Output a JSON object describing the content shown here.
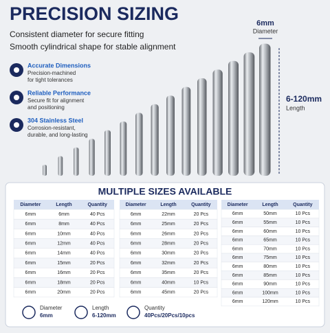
{
  "header": {
    "title": "PRECISION SIZING",
    "subtitle_lines": [
      "Consistent diameter for secure fitting",
      "Smooth cylindrical shape for stable alignment"
    ]
  },
  "features": [
    {
      "title": "Accurate Dimensions",
      "description": [
        "Precision-machined",
        "for tight tolerances"
      ]
    },
    {
      "title": "Reliable Performance",
      "description": [
        "Secure fit for alignment",
        "and positioning"
      ]
    },
    {
      "title": "304 Stainless Steel",
      "description": [
        "Corrosion-resistant,",
        "durable, and long-lasting"
      ]
    }
  ],
  "dimensions": {
    "diameter": {
      "value": "6mm",
      "label": "Diameter"
    },
    "length": {
      "value": "6-120mm",
      "label": "Length"
    }
  },
  "sizes": {
    "title": "MULTIPLE SIZES AVAILABLE",
    "tables": [
      {
        "columns": [
          "Diameter",
          "Length",
          "Quantity"
        ],
        "rows": [
          [
            "6mm",
            "6mm",
            "40 Pcs"
          ],
          [
            "6mm",
            "8mm",
            "40 Pcs"
          ],
          [
            "6mm",
            "10mm",
            "40 Pcs"
          ],
          [
            "6mm",
            "12mm",
            "40 Pcs"
          ],
          [
            "6mm",
            "14mm",
            "40 Pcs"
          ],
          [
            "6mm",
            "15mm",
            "20 Pcs"
          ],
          [
            "6mm",
            "16mm",
            "20 Pcs"
          ],
          [
            "6mm",
            "18mm",
            "20 Pcs"
          ],
          [
            "6mm",
            "20mm",
            "20 Pcs"
          ]
        ]
      },
      {
        "columns": [
          "Diameter",
          "Length",
          "Quantity"
        ],
        "rows": [
          [
            "6mm",
            "22mm",
            "20 Pcs"
          ],
          [
            "6mm",
            "25mm",
            "20 Pcs"
          ],
          [
            "6mm",
            "26mm",
            "20 Pcs"
          ],
          [
            "6mm",
            "28mm",
            "20 Pcs"
          ],
          [
            "6mm",
            "30mm",
            "20 Pcs"
          ],
          [
            "6mm",
            "32mm",
            "20 Pcs"
          ],
          [
            "6mm",
            "35mm",
            "20 Pcs"
          ],
          [
            "6mm",
            "40mm",
            "10 Pcs"
          ],
          [
            "6mm",
            "45mm",
            "20 Pcs"
          ]
        ]
      },
      {
        "columns": [
          "Diameter",
          "Length",
          "Quantity"
        ],
        "rows": [
          [
            "6mm",
            "50mm",
            "10 Pcs"
          ],
          [
            "6mm",
            "55mm",
            "10 Pcs"
          ],
          [
            "6mm",
            "60mm",
            "10 Pcs"
          ],
          [
            "6mm",
            "65mm",
            "10 Pcs"
          ],
          [
            "6mm",
            "70mm",
            "10 Pcs"
          ],
          [
            "6mm",
            "75mm",
            "10 Pcs"
          ],
          [
            "6mm",
            "80mm",
            "10 Pcs"
          ],
          [
            "6mm",
            "85mm",
            "10 Pcs"
          ],
          [
            "6mm",
            "90mm",
            "10 Pcs"
          ],
          [
            "6mm",
            "100mm",
            "10 Pcs"
          ],
          [
            "6mm",
            "120mm",
            "10 Pcs"
          ]
        ]
      }
    ]
  },
  "footer": [
    {
      "label": "Diameter",
      "value": "6mm"
    },
    {
      "label": "Length",
      "value": "6-120mm"
    },
    {
      "label": "Quantity",
      "value": "40Pcs/20Pcs/10pcs"
    }
  ]
}
